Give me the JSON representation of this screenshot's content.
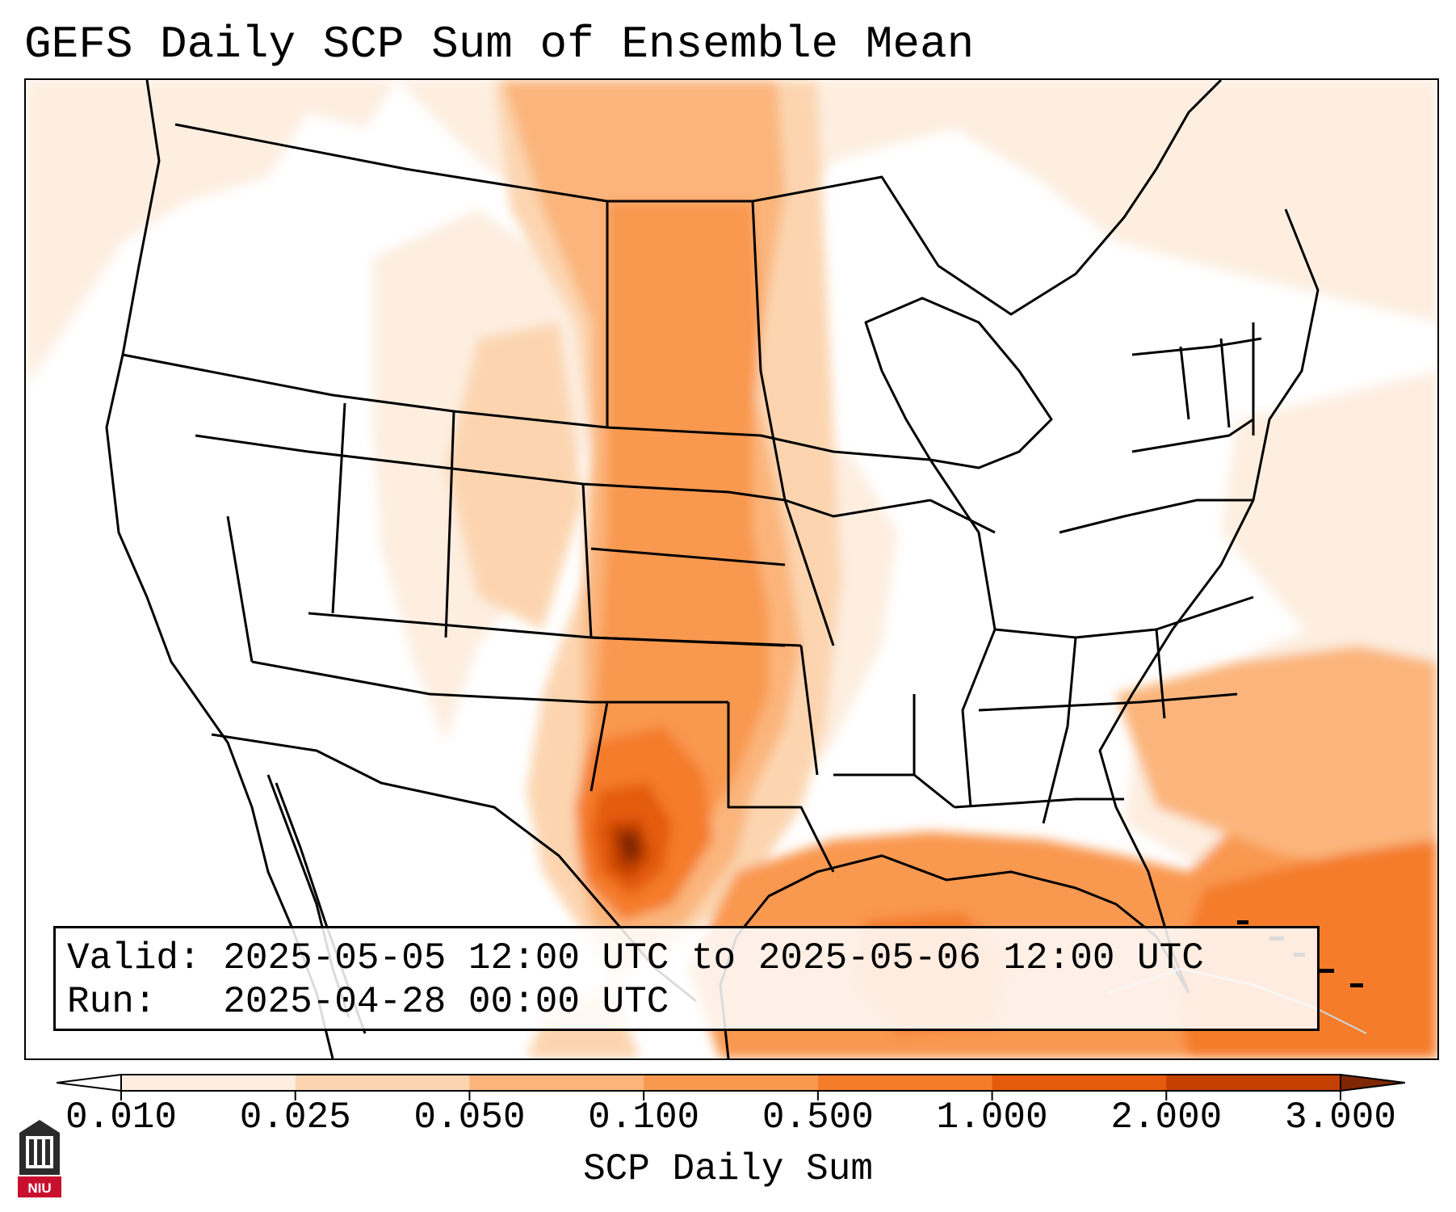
{
  "title": "GEFS Daily SCP Sum of Ensemble Mean",
  "info": {
    "valid_label": "Valid:",
    "valid_value": "2025-05-05 12:00 UTC to 2025-05-06 12:00 UTC",
    "run_label": "Run:",
    "run_value": "2025-04-28 00:00 UTC"
  },
  "colorbar": {
    "label": "SCP Daily Sum",
    "ticks": [
      "0.010",
      "0.025",
      "0.050",
      "0.100",
      "0.500",
      "1.000",
      "2.000",
      "3.000"
    ],
    "colors": [
      "#fdeee0",
      "#fcd5b0",
      "#fbb57c",
      "#f9984f",
      "#f47c2a",
      "#e45c0c",
      "#c44003"
    ],
    "under_color": "#ffffff",
    "over_color": "#7f2704",
    "extend": "both"
  },
  "logo": {
    "text": "NIU",
    "icon": "niu-logo-icon",
    "color": "#c8102e"
  },
  "map": {
    "projection": "lambert-conformal",
    "region": "CONUS",
    "maximum_area": "West Texas / Big Bend",
    "colors": {
      "background": "#ffffff",
      "boundaries": "#000000"
    }
  }
}
